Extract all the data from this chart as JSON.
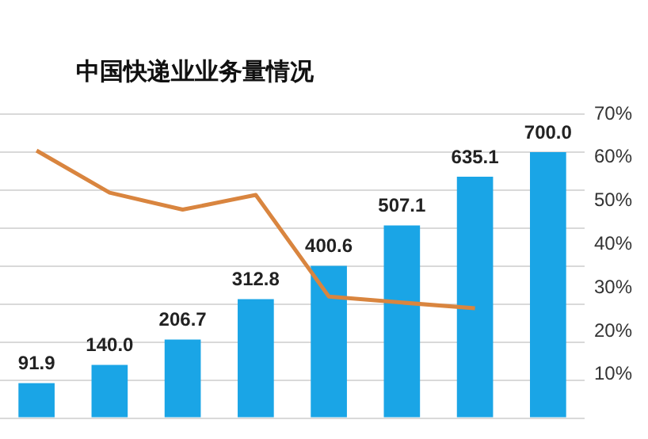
{
  "chart_data": {
    "type": "bar",
    "title": "中国快递业业务量情况",
    "categories": [
      null,
      null,
      null,
      null,
      null,
      null,
      null,
      null
    ],
    "series": [
      {
        "color": "#1aa5e6",
        "values": [
          91.9,
          140.0,
          206.7,
          312.8,
          400.6,
          507.1,
          635.1,
          700.0
        ],
        "value_labels": [
          "91.9",
          "140.0",
          "206.7",
          "312.8",
          "400.6",
          "507.1",
          "635.1",
          "700.0"
        ]
      },
      {
        "type": "line",
        "axis": "y2",
        "color": "#d9853f",
        "values": [
          61.6,
          51.9,
          48,
          51.4,
          28,
          26.6,
          25.3,
          null
        ]
      }
    ],
    "ylim": [
      0,
      800
    ],
    "yticks": [
      {
        "value": 0,
        "label": null
      },
      {
        "value": 100,
        "label": null
      },
      {
        "value": 200,
        "label": null
      },
      {
        "value": 300,
        "label": null
      },
      {
        "value": 400,
        "label": null
      },
      {
        "value": 500,
        "label": null
      },
      {
        "value": 600,
        "label": null
      },
      {
        "value": 700,
        "label": null
      },
      {
        "value": 800,
        "label": null
      }
    ],
    "y2lim": [
      0,
      70
    ],
    "y2ticks": [
      {
        "value": 10,
        "label": "10%"
      },
      {
        "value": 20,
        "label": "20%"
      },
      {
        "value": 30,
        "label": "30%"
      },
      {
        "value": 40,
        "label": "40%"
      },
      {
        "value": 50,
        "label": "50%"
      },
      {
        "value": 60,
        "label": "60%"
      },
      {
        "value": 70,
        "label": "70%"
      }
    ],
    "grid": "y",
    "legend": false,
    "marker": "none"
  }
}
